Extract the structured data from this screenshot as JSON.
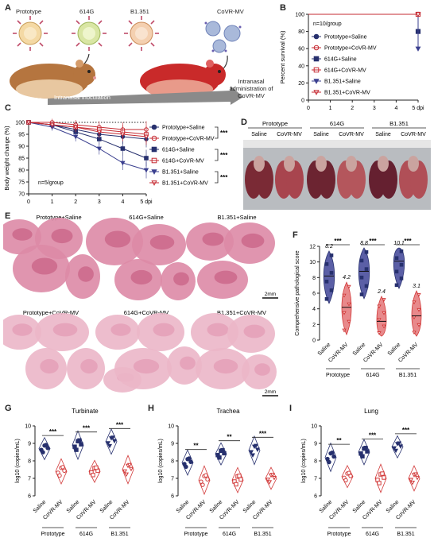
{
  "panel_labels": {
    "a": "A",
    "b": "B",
    "c": "C",
    "d": "D",
    "e": "E",
    "f": "F",
    "g": "G",
    "h": "H",
    "i": "I"
  },
  "panel_a": {
    "virus_labels": [
      "Prototype",
      "614G",
      "B1.351"
    ],
    "treatment_label": "CoVR-MV",
    "arrow_label": "Intranasal inoculation",
    "admin_label": "Intranasal administration of CoVR-MV"
  },
  "colors": {
    "prototype": "#27306e",
    "variant614": "#c62a32",
    "b1351": "#3a3f8f",
    "saline": "#27306e",
    "covr": "#d23a3a"
  },
  "chart_data": [
    {
      "type": "line",
      "title": "",
      "ylabel": "Percent survival (%)",
      "xlabel": "",
      "x_ticks": [
        "0",
        "1",
        "2",
        "3",
        "4",
        "5 dpi"
      ],
      "x": [
        0,
        1,
        2,
        3,
        4,
        5
      ],
      "yticks": [
        "0",
        "20",
        "40",
        "60",
        "80",
        "100"
      ],
      "ylim": [
        0,
        100
      ],
      "annotation": "n=10/group",
      "series": [
        {
          "name": "Prototype+Saline",
          "values": [
            100,
            100,
            100,
            100,
            100,
            100
          ]
        },
        {
          "name": "Prototype+CoVR-MV",
          "values": [
            100,
            100,
            100,
            100,
            100,
            100
          ]
        },
        {
          "name": "614G+Saline",
          "values": [
            100,
            100,
            100,
            100,
            100,
            80
          ]
        },
        {
          "name": "614G+CoVR-MV",
          "values": [
            100,
            100,
            100,
            100,
            100,
            100
          ]
        },
        {
          "name": "B1.351+Saline",
          "values": [
            100,
            100,
            100,
            100,
            100,
            60
          ]
        },
        {
          "name": "B1.351+CoVR-MV",
          "values": [
            100,
            100,
            100,
            100,
            100,
            100
          ]
        }
      ]
    },
    {
      "type": "line",
      "title": "",
      "ylabel": "Body weight change (%)",
      "xlabel": "",
      "x_ticks": [
        "0",
        "1",
        "2",
        "3",
        "4",
        "5 dpi"
      ],
      "x": [
        0,
        1,
        2,
        3,
        4,
        5
      ],
      "yticks": [
        "70",
        "75",
        "80",
        "85",
        "90",
        "95",
        "100"
      ],
      "ylim": [
        70,
        100
      ],
      "annotation": "n=5/group",
      "significance": [
        "***",
        "***",
        "***"
      ],
      "series": [
        {
          "name": "Prototype+Saline",
          "values": [
            100,
            99,
            97,
            95,
            94,
            93
          ]
        },
        {
          "name": "Prototype+CoVR-MV",
          "values": [
            100,
            100,
            99,
            98,
            97,
            97
          ]
        },
        {
          "name": "614G+Saline",
          "values": [
            100,
            99,
            96,
            93,
            89,
            85
          ]
        },
        {
          "name": "614G+CoVR-MV",
          "values": [
            100,
            99,
            98,
            97,
            96,
            95
          ]
        },
        {
          "name": "B1.351+Saline",
          "values": [
            100,
            98,
            94,
            89,
            83,
            80
          ]
        },
        {
          "name": "B1.351+CoVR-MV",
          "values": [
            100,
            99,
            98,
            96,
            95,
            94
          ]
        }
      ]
    },
    {
      "type": "scatter",
      "title": "",
      "ylabel": "Comprehensive pathological score",
      "yticks": [
        "0",
        "2",
        "4",
        "6",
        "8",
        "10",
        "12"
      ],
      "ylim": [
        0,
        12
      ],
      "categories": [
        "Saline",
        "CoVR-MV",
        "Saline",
        "CoVR-MV",
        "Saline",
        "CoVR-MV"
      ],
      "groups": [
        "Prototype",
        "614G",
        "B1.351"
      ],
      "means": [
        "8.2",
        "4.2",
        "8.8",
        "2.4",
        "10.1",
        "3.1"
      ],
      "mean_values": [
        8.2,
        4.2,
        8.8,
        2.4,
        10.1,
        3.1
      ],
      "significance": [
        "***",
        "***",
        "***"
      ]
    },
    {
      "type": "scatter",
      "title": "Turbinate",
      "ylabel": "log10 (copies/mL)",
      "yticks": [
        "6",
        "7",
        "8",
        "9",
        "10"
      ],
      "ylim": [
        6,
        10
      ],
      "categories": [
        "Saline",
        "CoVR-MV",
        "Saline",
        "CoVR-MV",
        "Saline",
        "CoVR-MV"
      ],
      "groups": [
        "Prototype",
        "614G",
        "B1.351"
      ],
      "mean_values": [
        8.7,
        7.4,
        8.9,
        7.4,
        9.1,
        7.5
      ],
      "significance": [
        "***",
        "***",
        "***"
      ]
    },
    {
      "type": "scatter",
      "title": "Trachea",
      "ylabel": "log10 (copies/mL)",
      "yticks": [
        "6",
        "7",
        "8",
        "9",
        "10"
      ],
      "ylim": [
        6,
        10
      ],
      "categories": [
        "Saline",
        "CoVR-MV",
        "Saline",
        "CoVR-MV",
        "Saline",
        "CoVR-MV"
      ],
      "groups": [
        "Prototype",
        "614G",
        "B1.351"
      ],
      "mean_values": [
        7.9,
        6.9,
        8.4,
        6.9,
        8.6,
        7.0
      ],
      "significance": [
        "**",
        "**",
        "***"
      ]
    },
    {
      "type": "scatter",
      "title": "Lung",
      "ylabel": "log10 (copies/mL)",
      "yticks": [
        "6",
        "7",
        "8",
        "9",
        "10"
      ],
      "ylim": [
        6,
        10
      ],
      "categories": [
        "Saline",
        "CoVR-MV",
        "Saline",
        "CoVR-MV",
        "Saline",
        "CoVR-MV"
      ],
      "groups": [
        "Prototype",
        "614G",
        "B1.351"
      ],
      "mean_values": [
        8.2,
        7.1,
        8.5,
        7.0,
        8.8,
        7.0
      ],
      "significance": [
        "**",
        "***",
        "***"
      ]
    }
  ],
  "panel_d": {
    "groups": [
      "Prototype",
      "614G",
      "B1.351"
    ],
    "conditions": [
      "Saline",
      "CoVR-MV",
      "Saline",
      "CoVR-MV",
      "Saline",
      "CoVR-MV"
    ]
  },
  "panel_e": {
    "labels": [
      "Prototype+Saline",
      "614G+Saline",
      "B1.351+Saline",
      "Prototype+CoVR-MV",
      "614G+CoVR-MV",
      "B1.351+CoVR-MV"
    ],
    "scale": "2mm"
  }
}
